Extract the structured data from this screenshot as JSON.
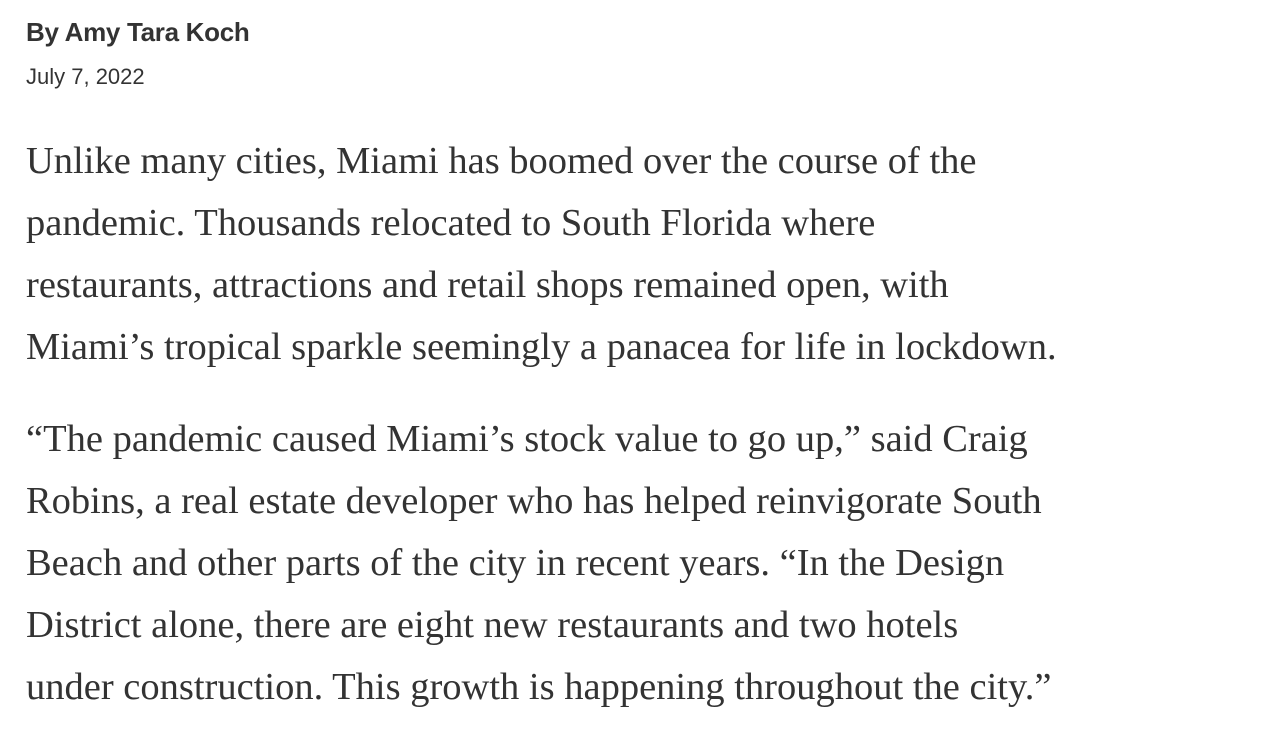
{
  "byline": "By Amy Tara Koch",
  "date": "July 7, 2022",
  "paragraphs": [
    [
      "Unlike many cities, Miami has boomed over the course of the",
      "pandemic. Thousands relocated to South Florida where",
      "restaurants, attractions and retail shops remained open, with",
      "Miami’s tropical sparkle seemingly a panacea for life in lockdown."
    ],
    [
      "“The pandemic caused Miami’s stock value to go up,” said Craig",
      "Robins, a real estate developer who has helped reinvigorate South",
      "Beach and other parts of the city in recent years. “In the Design",
      "District alone, there are eight new restaurants and two hotels",
      "under construction. This growth is happening throughout the city.”"
    ]
  ]
}
